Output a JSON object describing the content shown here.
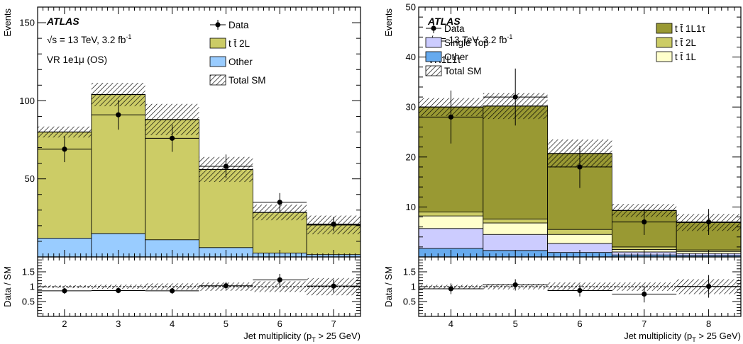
{
  "chart_data": [
    {
      "type": "bar",
      "stacked": true,
      "atlas_label": "ATLAS",
      "energy_label": "√s = 13 TeV, 3.2 fb",
      "energy_sup": "-1",
      "region_label": "VR 1e1μ (OS)",
      "xlabel": "Jet multiplicity (p",
      "xlabel_sub": "T",
      "xlabel_end": " > 25 GeV)",
      "ylabel": "Events",
      "ratio_ylabel": "Data / SM",
      "x": [
        2,
        3,
        4,
        5,
        6,
        7
      ],
      "xlim": [
        1.5,
        7.5
      ],
      "xticks": [
        "2",
        "3",
        "4",
        "5",
        "6",
        "7"
      ],
      "ylim": [
        0,
        160
      ],
      "yticks": [
        "50",
        "100",
        "150"
      ],
      "ratio_ylim": [
        0,
        2
      ],
      "ratio_yticks": [
        "0.5",
        "1",
        "1.5"
      ],
      "series": [
        {
          "name": "Other",
          "color": "#99ccff",
          "values": [
            12,
            15,
            11,
            6,
            2.5,
            1.5
          ]
        },
        {
          "name": "t t̄ 2L",
          "color": "#cccc66",
          "values": [
            68,
            89,
            77,
            50,
            26,
            19
          ]
        }
      ],
      "total_sm": [
        80,
        104,
        88,
        56,
        28.5,
        20.5
      ],
      "total_unc": [
        3.5,
        7.5,
        10,
        8,
        5,
        6
      ],
      "data": [
        69,
        91,
        76,
        58,
        35,
        21
      ],
      "data_err": [
        8.3,
        9.5,
        8.7,
        7.6,
        5.9,
        4.6
      ],
      "ratio": [
        0.86,
        0.87,
        0.86,
        1.03,
        1.23,
        1.02
      ],
      "ratio_err": [
        0.1,
        0.09,
        0.1,
        0.13,
        0.2,
        0.22
      ],
      "ratio_unc": [
        0.05,
        0.07,
        0.11,
        0.14,
        0.18,
        0.29
      ],
      "legend": [
        {
          "label": "Data",
          "kind": "data"
        },
        {
          "label": "t t̄ 2L",
          "kind": "fill",
          "color": "#cccc66"
        },
        {
          "label": "Other",
          "kind": "fill",
          "color": "#99ccff"
        },
        {
          "label": "Total SM",
          "kind": "hatch"
        }
      ]
    },
    {
      "type": "bar",
      "stacked": true,
      "atlas_label": "ATLAS",
      "energy_label": "√s = 13 TeV, 3.2 fb",
      "energy_sup": "-1",
      "region_label": "VR1L1τ",
      "xlabel": "Jet multiplicity (p",
      "xlabel_sub": "T",
      "xlabel_end": " > 25 GeV)",
      "ylabel": "Events",
      "ratio_ylabel": "Data / SM",
      "x": [
        4,
        5,
        6,
        7,
        8
      ],
      "xlim": [
        3.5,
        8.5
      ],
      "xticks": [
        "4",
        "5",
        "6",
        "7",
        "8"
      ],
      "ylim": [
        0,
        50
      ],
      "yticks": [
        "10",
        "20",
        "30",
        "40",
        "50"
      ],
      "ratio_ylim": [
        0,
        2
      ],
      "ratio_yticks": [
        "0.5",
        "1",
        "1.5"
      ],
      "series": [
        {
          "name": "Other",
          "color": "#66aaee",
          "values": [
            1.7,
            1.3,
            0.9,
            0.4,
            0.3
          ]
        },
        {
          "name": "Single Top",
          "color": "#ccccff",
          "values": [
            4.0,
            3.2,
            1.8,
            0.6,
            0.4
          ]
        },
        {
          "name": "t t̄ 1L",
          "color": "#ffffcc",
          "values": [
            2.5,
            2.3,
            1.8,
            0.5,
            0.4
          ]
        },
        {
          "name": "t t̄ 2L",
          "color": "#cccc66",
          "values": [
            0.8,
            0.8,
            1.0,
            0.5,
            0.3
          ]
        },
        {
          "name": "t t̄ 1L1τ",
          "color": "#999933",
          "values": [
            21,
            22.6,
            15.2,
            7.3,
            5.5
          ]
        }
      ],
      "total_sm": [
        30,
        30.2,
        20.7,
        9.3,
        6.9
      ],
      "total_unc": [
        1.8,
        2.6,
        2.8,
        1.3,
        1.7
      ],
      "data": [
        28,
        32,
        18,
        7,
        7
      ],
      "data_err": [
        5.3,
        5.7,
        4.2,
        2.6,
        2.6
      ],
      "ratio": [
        0.93,
        1.06,
        0.87,
        0.75,
        1.01
      ],
      "ratio_err": [
        0.18,
        0.19,
        0.2,
        0.28,
        0.38
      ],
      "ratio_unc": [
        0.06,
        0.09,
        0.14,
        0.14,
        0.25
      ],
      "legend": [
        {
          "label": "Data",
          "kind": "data"
        },
        {
          "label": "Single Top",
          "kind": "fill",
          "color": "#ccccff"
        },
        {
          "label": "Other",
          "kind": "fill",
          "color": "#66aaee"
        },
        {
          "label": "Total SM",
          "kind": "hatch"
        },
        {
          "label": "t t̄ 1L1τ",
          "kind": "fill",
          "color": "#999933"
        },
        {
          "label": "t t̄ 2L",
          "kind": "fill",
          "color": "#cccc66"
        },
        {
          "label": "t t̄ 1L",
          "kind": "fill",
          "color": "#ffffcc"
        }
      ]
    }
  ]
}
